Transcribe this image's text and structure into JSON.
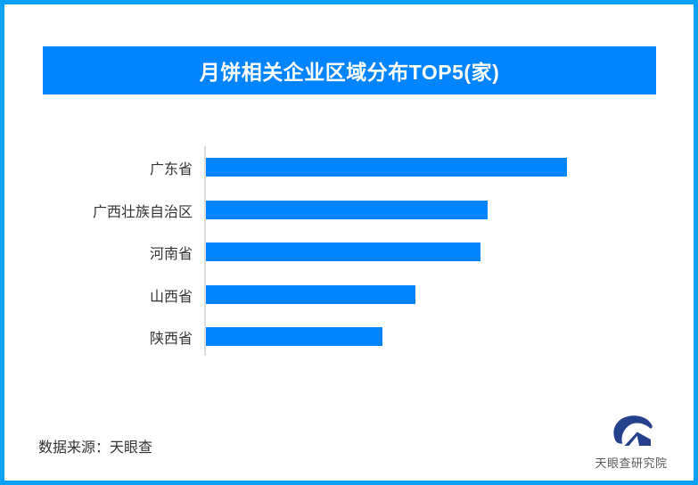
{
  "page": {
    "background": "#FFFFFF",
    "border_color": "#0AA1F6"
  },
  "header": {
    "title": "月饼相关企业区域分布TOP5(家)",
    "bg_color": "#0285FC",
    "text_color": "#FFFFFF"
  },
  "chart_data": {
    "type": "bar",
    "orientation": "horizontal",
    "title": "月饼相关企业区域分布TOP5(家)",
    "categories": [
      "广东省",
      "广西壮族自治区",
      "河南省",
      "山西省",
      "陕西省"
    ],
    "values_pct_of_max": [
      100,
      78,
      76,
      58,
      49
    ],
    "value_labels_shown": false,
    "x_axis_shown": false,
    "gridlines": false,
    "legend": "none",
    "bar_color": "#0285FC",
    "axis_line_color": "#DCDCDC",
    "label_color": "#333333"
  },
  "footer": {
    "source_label": "数据来源：天眼查",
    "logo": {
      "icon": "tianyancha-eye-icon",
      "text": "天眼查研究院",
      "color": "#24418E",
      "text_color": "#595959"
    }
  }
}
